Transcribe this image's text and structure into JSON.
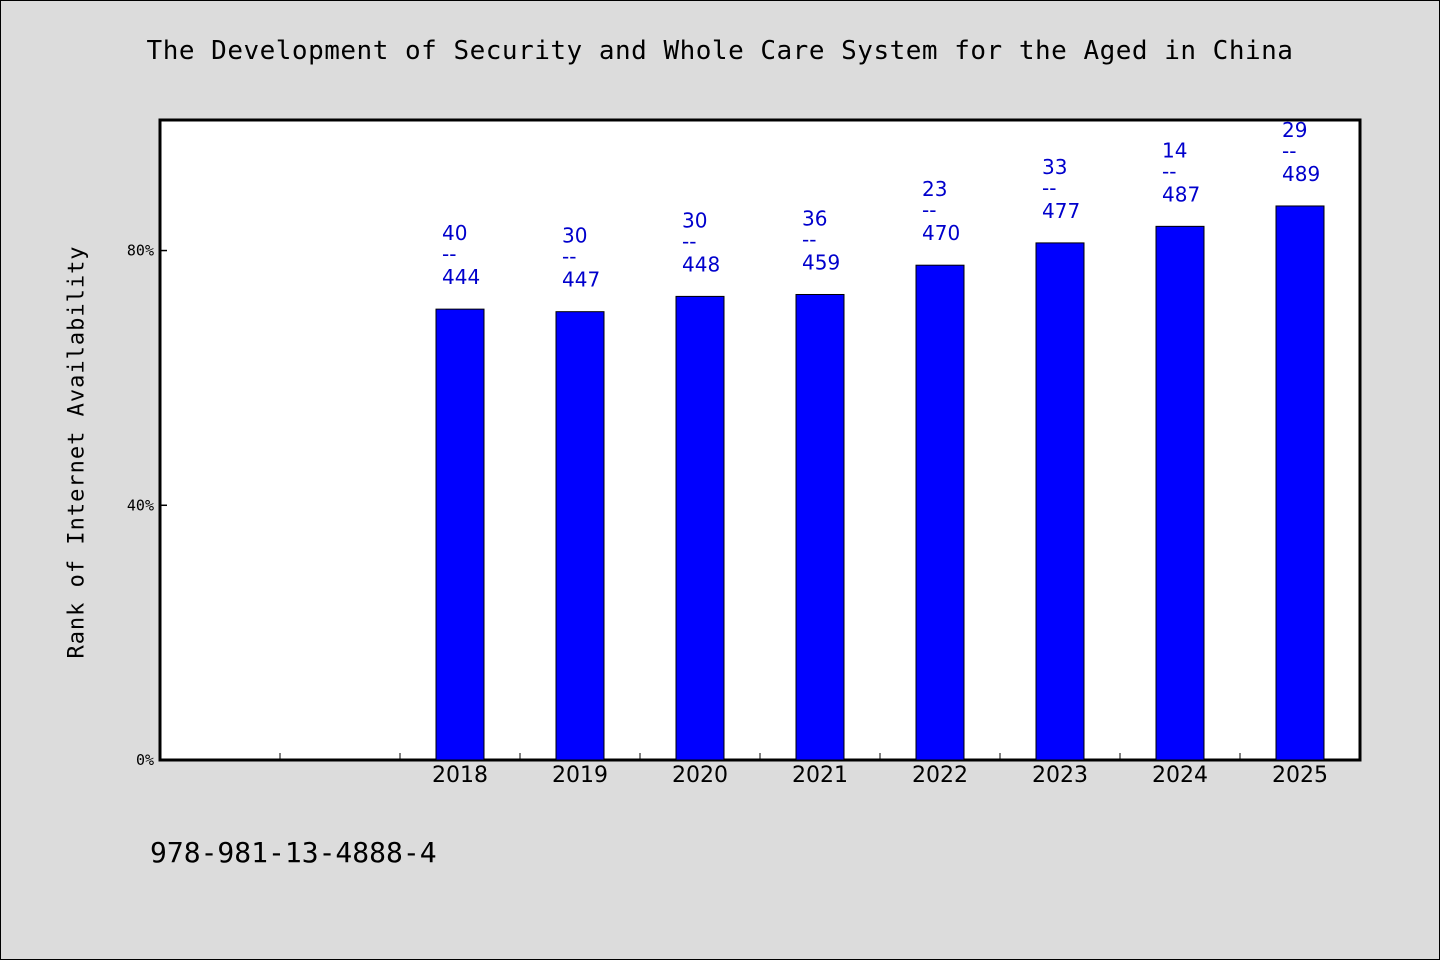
{
  "chart_data": {
    "type": "bar",
    "title": "The Development of Security and Whole Care System for the Aged in China",
    "ylabel": "Rank of Internet Availability",
    "xlabel": "",
    "categories": [
      "",
      "",
      "2018",
      "2019",
      "2020",
      "2021",
      "2022",
      "2023",
      "2024",
      "2025"
    ],
    "values": [
      null,
      null,
      70.8,
      70.4,
      72.8,
      73.1,
      77.7,
      81.2,
      83.8,
      87.0
    ],
    "data_labels": [
      null,
      null,
      {
        "top": "40",
        "mid": "--",
        "bottom": "444"
      },
      {
        "top": "30",
        "mid": "--",
        "bottom": "447"
      },
      {
        "top": "30",
        "mid": "--",
        "bottom": "448"
      },
      {
        "top": "36",
        "mid": "--",
        "bottom": "459"
      },
      {
        "top": "23",
        "mid": "--",
        "bottom": "470"
      },
      {
        "top": "33",
        "mid": "--",
        "bottom": "477"
      },
      {
        "top": "14",
        "mid": "--",
        "bottom": "487"
      },
      {
        "top": "29",
        "mid": "--",
        "bottom": "489"
      }
    ],
    "yticks": [
      0,
      40,
      80
    ],
    "ytick_labels": [
      "0%",
      "40%",
      "80%"
    ],
    "ylim": [
      0,
      100.5
    ],
    "grid": false,
    "legend": "none",
    "colors": {
      "bar": "#0000ff",
      "label": "#0000cc",
      "plot_bg": "#ffffff",
      "page_bg": "#dcdcdc"
    }
  },
  "footer": {
    "isbn": "978-981-13-4888-4"
  }
}
